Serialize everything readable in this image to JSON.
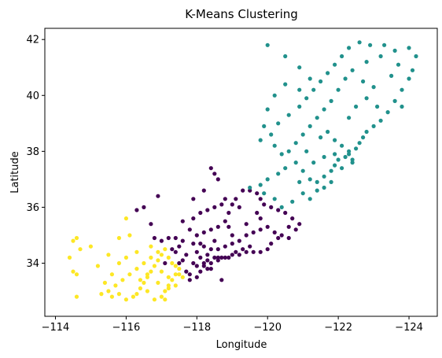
{
  "chart_data": {
    "type": "scatter",
    "title": "K-Means Clustering",
    "xlabel": "Longitude",
    "ylabel": "Latitude",
    "xlim": [
      -113.7,
      -124.8
    ],
    "ylim": [
      32.1,
      42.4
    ],
    "x_ticks": [
      -114,
      -116,
      -118,
      -120,
      -122,
      -124
    ],
    "x_tick_labels": [
      "−114",
      "−116",
      "−118",
      "−120",
      "−122",
      "−124"
    ],
    "y_ticks": [
      34,
      36,
      38,
      40,
      42
    ],
    "y_tick_labels": [
      "34",
      "36",
      "38",
      "40",
      "42"
    ],
    "grid": false,
    "legend": "none",
    "series": [
      {
        "color": "#440154",
        "points": [
          [
            -117.5,
            34.6
          ],
          [
            -117.7,
            34.3
          ],
          [
            -117.9,
            34.0
          ],
          [
            -118.0,
            33.9
          ],
          [
            -118.2,
            34.0
          ],
          [
            -118.3,
            34.1
          ],
          [
            -118.4,
            34.0
          ],
          [
            -118.5,
            34.2
          ],
          [
            -118.6,
            34.1
          ],
          [
            -118.7,
            34.2
          ],
          [
            -118.8,
            34.2
          ],
          [
            -119.0,
            34.3
          ],
          [
            -119.2,
            34.3
          ],
          [
            -119.4,
            34.4
          ],
          [
            -119.6,
            34.4
          ],
          [
            -119.8,
            34.4
          ],
          [
            -120.0,
            34.5
          ],
          [
            -118.1,
            33.7
          ],
          [
            -118.3,
            33.8
          ],
          [
            -118.0,
            33.5
          ],
          [
            -117.8,
            33.4
          ],
          [
            -117.7,
            33.7
          ],
          [
            -117.6,
            34.1
          ],
          [
            -117.5,
            34.0
          ],
          [
            -117.4,
            34.4
          ],
          [
            -117.3,
            34.5
          ],
          [
            -117.2,
            34.9
          ],
          [
            -117.4,
            34.9
          ],
          [
            -117.6,
            34.8
          ],
          [
            -117.9,
            34.7
          ],
          [
            -118.1,
            34.7
          ],
          [
            -118.2,
            34.6
          ],
          [
            -118.4,
            34.5
          ],
          [
            -118.6,
            34.5
          ],
          [
            -118.8,
            34.6
          ],
          [
            -119.0,
            34.7
          ],
          [
            -119.2,
            34.8
          ],
          [
            -119.4,
            35.0
          ],
          [
            -119.6,
            35.1
          ],
          [
            -119.8,
            35.2
          ],
          [
            -120.0,
            35.3
          ],
          [
            -120.2,
            35.1
          ],
          [
            -120.4,
            35.0
          ],
          [
            -120.6,
            34.9
          ],
          [
            -120.8,
            35.2
          ],
          [
            -120.9,
            35.4
          ],
          [
            -120.7,
            35.6
          ],
          [
            -120.5,
            35.8
          ],
          [
            -120.3,
            35.9
          ],
          [
            -120.1,
            36.0
          ],
          [
            -119.9,
            36.1
          ],
          [
            -119.8,
            36.3
          ],
          [
            -119.7,
            36.5
          ],
          [
            -119.5,
            36.6
          ],
          [
            -119.3,
            36.6
          ],
          [
            -119.1,
            36.3
          ],
          [
            -119.0,
            36.1
          ],
          [
            -118.9,
            35.8
          ],
          [
            -118.8,
            35.5
          ],
          [
            -118.6,
            35.3
          ],
          [
            -118.4,
            35.2
          ],
          [
            -118.2,
            35.1
          ],
          [
            -118.0,
            35.0
          ],
          [
            -117.8,
            35.2
          ],
          [
            -117.6,
            35.5
          ],
          [
            -117.9,
            35.6
          ],
          [
            -118.1,
            35.8
          ],
          [
            -118.3,
            35.9
          ],
          [
            -118.5,
            36.0
          ],
          [
            -118.7,
            36.1
          ],
          [
            -118.2,
            36.6
          ],
          [
            -118.5,
            37.2
          ],
          [
            -118.4,
            37.4
          ],
          [
            -118.6,
            37.0
          ],
          [
            -117.9,
            36.3
          ],
          [
            -117.1,
            34.0
          ],
          [
            -117.0,
            34.8
          ],
          [
            -116.8,
            34.9
          ],
          [
            -116.7,
            35.4
          ],
          [
            -116.5,
            36.0
          ],
          [
            -116.9,
            36.4
          ],
          [
            -116.3,
            35.9
          ],
          [
            -118.9,
            34.2
          ],
          [
            -119.1,
            34.4
          ],
          [
            -118.6,
            34.2
          ],
          [
            -118.2,
            33.9
          ],
          [
            -118.4,
            33.8
          ],
          [
            -118.1,
            34.2
          ],
          [
            -118.3,
            34.3
          ],
          [
            -119.3,
            34.5
          ],
          [
            -119.5,
            34.6
          ],
          [
            -120.1,
            34.7
          ],
          [
            -120.3,
            34.9
          ],
          [
            -118.7,
            33.4
          ],
          [
            -118.0,
            34.4
          ],
          [
            -117.8,
            33.6
          ],
          [
            -118.5,
            34.8
          ],
          [
            -119.8,
            35.6
          ],
          [
            -119.4,
            35.4
          ],
          [
            -119.0,
            35.0
          ],
          [
            -118.9,
            35.3
          ],
          [
            -120.6,
            35.3
          ],
          [
            -119.7,
            35.8
          ],
          [
            -119.2,
            36.0
          ],
          [
            -118.8,
            36.3
          ]
        ]
      },
      {
        "color": "#21918c",
        "points": [
          [
            -119.5,
            36.7
          ],
          [
            -119.8,
            36.8
          ],
          [
            -120.0,
            37.0
          ],
          [
            -120.3,
            37.2
          ],
          [
            -120.5,
            37.4
          ],
          [
            -120.8,
            37.6
          ],
          [
            -121.0,
            37.3
          ],
          [
            -121.2,
            37.0
          ],
          [
            -121.4,
            36.9
          ],
          [
            -121.6,
            37.1
          ],
          [
            -121.8,
            37.3
          ],
          [
            -121.9,
            37.5
          ],
          [
            -122.0,
            37.7
          ],
          [
            -122.2,
            37.8
          ],
          [
            -122.3,
            37.9
          ],
          [
            -122.4,
            37.7
          ],
          [
            -122.5,
            38.1
          ],
          [
            -122.6,
            38.3
          ],
          [
            -122.7,
            38.5
          ],
          [
            -122.8,
            38.7
          ],
          [
            -123.0,
            38.9
          ],
          [
            -123.2,
            39.1
          ],
          [
            -123.4,
            39.4
          ],
          [
            -123.6,
            39.8
          ],
          [
            -123.8,
            40.2
          ],
          [
            -124.0,
            40.6
          ],
          [
            -124.1,
            40.9
          ],
          [
            -124.2,
            41.4
          ],
          [
            -124.0,
            41.7
          ],
          [
            -123.6,
            41.6
          ],
          [
            -123.2,
            41.4
          ],
          [
            -122.8,
            41.2
          ],
          [
            -122.4,
            40.9
          ],
          [
            -122.2,
            40.6
          ],
          [
            -122.0,
            40.2
          ],
          [
            -121.8,
            39.8
          ],
          [
            -121.6,
            39.5
          ],
          [
            -121.4,
            39.2
          ],
          [
            -121.2,
            38.9
          ],
          [
            -121.0,
            38.6
          ],
          [
            -120.8,
            38.3
          ],
          [
            -120.6,
            38.0
          ],
          [
            -120.4,
            37.9
          ],
          [
            -120.2,
            38.2
          ],
          [
            -120.1,
            38.6
          ],
          [
            -120.3,
            39.0
          ],
          [
            -120.6,
            39.3
          ],
          [
            -120.9,
            39.6
          ],
          [
            -121.1,
            39.9
          ],
          [
            -121.3,
            40.2
          ],
          [
            -121.5,
            40.5
          ],
          [
            -121.7,
            40.8
          ],
          [
            -121.9,
            41.1
          ],
          [
            -122.1,
            41.4
          ],
          [
            -122.3,
            41.7
          ],
          [
            -122.6,
            41.9
          ],
          [
            -122.9,
            41.8
          ],
          [
            -123.3,
            41.8
          ],
          [
            -120.5,
            40.4
          ],
          [
            -120.2,
            40.0
          ],
          [
            -120.0,
            39.5
          ],
          [
            -119.9,
            38.9
          ],
          [
            -119.8,
            38.4
          ],
          [
            -120.0,
            41.8
          ],
          [
            -120.5,
            41.4
          ],
          [
            -120.9,
            41.0
          ],
          [
            -121.2,
            40.6
          ],
          [
            -120.9,
            40.2
          ],
          [
            -122.3,
            39.2
          ],
          [
            -122.5,
            39.6
          ],
          [
            -122.8,
            39.9
          ],
          [
            -123.0,
            40.3
          ],
          [
            -122.7,
            40.5
          ],
          [
            -123.5,
            40.7
          ],
          [
            -123.7,
            41.1
          ],
          [
            -121.5,
            38.5
          ],
          [
            -121.7,
            38.7
          ],
          [
            -121.9,
            38.4
          ],
          [
            -122.1,
            38.2
          ],
          [
            -122.3,
            38.0
          ],
          [
            -121.6,
            37.8
          ],
          [
            -121.3,
            37.6
          ],
          [
            -121.1,
            38.0
          ],
          [
            -120.9,
            36.9
          ],
          [
            -121.0,
            36.5
          ],
          [
            -121.2,
            36.3
          ],
          [
            -121.4,
            36.6
          ],
          [
            -121.6,
            36.7
          ],
          [
            -121.8,
            36.9
          ],
          [
            -120.7,
            36.2
          ],
          [
            -120.4,
            36.0
          ],
          [
            -120.2,
            36.3
          ],
          [
            -119.9,
            36.5
          ],
          [
            -122.1,
            37.4
          ],
          [
            -122.4,
            37.6
          ],
          [
            -121.9,
            37.9
          ],
          [
            -123.1,
            39.6
          ],
          [
            -123.8,
            39.6
          ]
        ]
      },
      {
        "color": "#fde725",
        "points": [
          [
            -117.1,
            32.7
          ],
          [
            -117.0,
            32.8
          ],
          [
            -117.1,
            33.0
          ],
          [
            -117.2,
            33.2
          ],
          [
            -117.3,
            33.4
          ],
          [
            -117.4,
            33.6
          ],
          [
            -117.5,
            33.8
          ],
          [
            -117.3,
            34.0
          ],
          [
            -117.2,
            34.2
          ],
          [
            -117.0,
            34.3
          ],
          [
            -116.9,
            34.1
          ],
          [
            -116.8,
            33.9
          ],
          [
            -116.7,
            33.7
          ],
          [
            -116.6,
            33.5
          ],
          [
            -116.5,
            33.3
          ],
          [
            -116.4,
            33.1
          ],
          [
            -116.3,
            32.9
          ],
          [
            -116.2,
            32.8
          ],
          [
            -116.0,
            32.7
          ],
          [
            -115.8,
            32.9
          ],
          [
            -115.6,
            32.8
          ],
          [
            -115.5,
            33.0
          ],
          [
            -115.7,
            33.2
          ],
          [
            -115.9,
            33.4
          ],
          [
            -116.1,
            33.6
          ],
          [
            -116.3,
            33.8
          ],
          [
            -116.5,
            34.0
          ],
          [
            -116.7,
            34.2
          ],
          [
            -116.9,
            34.4
          ],
          [
            -117.1,
            34.5
          ],
          [
            -116.6,
            33.0
          ],
          [
            -116.8,
            32.7
          ],
          [
            -116.9,
            33.3
          ],
          [
            -117.2,
            33.5
          ],
          [
            -117.4,
            33.9
          ],
          [
            -117.0,
            33.7
          ],
          [
            -116.7,
            34.6
          ],
          [
            -116.3,
            34.4
          ],
          [
            -116.0,
            34.2
          ],
          [
            -115.8,
            34.0
          ],
          [
            -115.6,
            33.6
          ],
          [
            -115.4,
            33.3
          ],
          [
            -115.3,
            32.9
          ],
          [
            -114.6,
            32.8
          ],
          [
            -114.6,
            33.6
          ],
          [
            -114.5,
            33.7
          ],
          [
            -114.4,
            34.2
          ],
          [
            -114.7,
            34.5
          ],
          [
            -114.6,
            34.9
          ],
          [
            -114.5,
            34.8
          ],
          [
            -115.0,
            34.6
          ],
          [
            -115.2,
            33.9
          ],
          [
            -115.5,
            34.3
          ],
          [
            -115.8,
            34.9
          ],
          [
            -116.1,
            35.0
          ],
          [
            -116.0,
            35.6
          ],
          [
            -117.2,
            33.1
          ],
          [
            -117.4,
            33.2
          ],
          [
            -117.6,
            33.5
          ],
          [
            -117.5,
            33.6
          ],
          [
            -116.6,
            33.6
          ],
          [
            -116.4,
            33.4
          ]
        ]
      }
    ]
  }
}
